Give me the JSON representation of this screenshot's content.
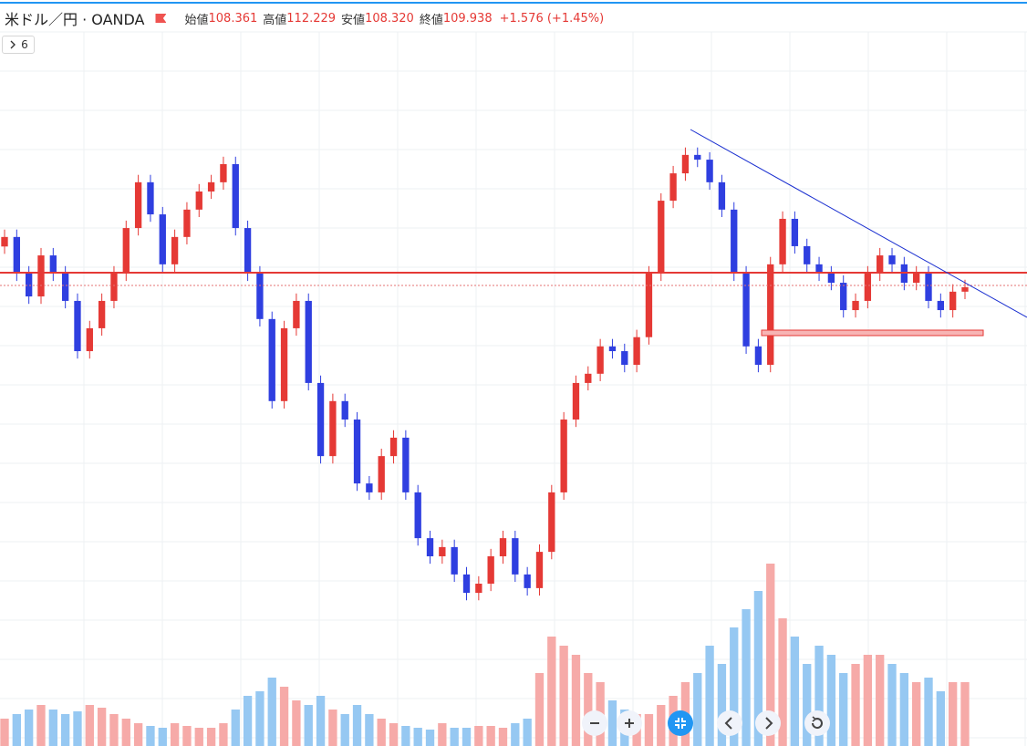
{
  "header": {
    "symbol": "米ドル／円 · OANDA",
    "ohlc": [
      {
        "label": "始値",
        "value": "108.361"
      },
      {
        "label": "高値",
        "value": "112.229"
      },
      {
        "label": "安値",
        "value": "108.320"
      },
      {
        "label": "終値",
        "value": "109.938"
      }
    ],
    "change": "+1.576 (+1.45%)"
  },
  "indicator_toggle": "6",
  "chart_data": {
    "type": "candlestick",
    "ylim": [
      94.5,
      119.59
    ],
    "y2lim": [
      0,
      818
    ],
    "up_color": "#e53935",
    "down_color": "#2f3fe0",
    "volume_up_color": "#f6aaa8",
    "volume_down_color": "#96c8f2",
    "grid": true,
    "open": [
      111.3,
      111.62,
      110.39,
      109.62,
      111.0,
      110.39,
      109.47,
      107.78,
      108.55,
      109.47,
      110.39,
      111.92,
      113.46,
      112.38,
      110.7,
      111.62,
      112.54,
      113.15,
      113.46,
      114.07,
      111.92,
      110.39,
      108.86,
      106.1,
      108.55,
      109.47,
      106.71,
      104.25,
      106.1,
      105.48,
      103.33,
      103.03,
      104.25,
      104.87,
      103.03,
      101.49,
      100.88,
      101.19,
      100.27,
      99.65,
      99.96,
      100.88,
      101.49,
      100.27,
      99.81,
      101.03,
      103.03,
      105.48,
      106.71,
      107.02,
      107.94,
      107.78,
      107.32,
      108.25,
      110.39,
      112.84,
      113.76,
      114.38,
      114.22,
      113.46,
      112.54,
      110.39,
      107.94,
      107.32,
      110.7,
      112.23,
      111.31,
      110.7,
      110.39,
      110.08,
      109.16,
      109.47,
      110.39,
      111.0,
      110.7,
      110.08,
      110.39,
      109.47,
      109.16,
      109.78
    ],
    "high": [
      111.87,
      111.87,
      110.64,
      111.25,
      111.25,
      110.64,
      109.72,
      108.8,
      109.72,
      110.64,
      112.17,
      113.71,
      113.71,
      112.63,
      111.87,
      112.79,
      113.4,
      113.71,
      114.32,
      114.32,
      112.17,
      110.64,
      109.11,
      108.8,
      109.72,
      109.72,
      106.96,
      106.35,
      106.35,
      105.73,
      103.58,
      104.5,
      105.12,
      105.12,
      103.28,
      101.74,
      101.44,
      101.44,
      100.52,
      100.21,
      101.13,
      101.74,
      101.74,
      100.52,
      101.28,
      103.28,
      105.73,
      106.96,
      107.27,
      108.19,
      108.19,
      108.03,
      108.5,
      110.64,
      113.09,
      114.01,
      114.63,
      114.63,
      114.47,
      113.71,
      112.79,
      110.64,
      108.19,
      110.95,
      112.48,
      112.48,
      111.56,
      110.95,
      110.64,
      110.33,
      109.72,
      110.64,
      111.25,
      111.25,
      110.95,
      110.64,
      110.64,
      109.72,
      110.03,
      110.18
    ],
    "low": [
      111.05,
      110.14,
      109.37,
      109.37,
      110.14,
      109.22,
      107.53,
      107.53,
      108.3,
      109.22,
      110.14,
      111.67,
      112.13,
      110.45,
      110.45,
      111.37,
      112.29,
      112.9,
      113.21,
      111.67,
      110.14,
      108.61,
      105.85,
      105.85,
      108.3,
      106.46,
      104.0,
      104.0,
      105.23,
      103.08,
      102.78,
      102.78,
      104.0,
      102.78,
      101.24,
      100.63,
      100.63,
      100.02,
      99.4,
      99.4,
      99.71,
      100.63,
      100.02,
      99.56,
      99.56,
      100.78,
      102.78,
      105.23,
      106.46,
      106.77,
      107.53,
      107.07,
      107.07,
      108.0,
      110.14,
      112.59,
      113.51,
      113.97,
      113.21,
      112.29,
      110.14,
      107.69,
      107.07,
      107.07,
      110.45,
      111.06,
      110.45,
      110.14,
      109.83,
      108.91,
      108.91,
      109.22,
      110.14,
      110.45,
      109.83,
      109.83,
      109.22,
      108.91,
      108.91,
      109.53
    ],
    "close": [
      111.62,
      110.39,
      109.62,
      111.0,
      110.39,
      109.47,
      107.78,
      108.55,
      109.47,
      110.39,
      111.92,
      113.46,
      112.38,
      110.7,
      111.62,
      112.54,
      113.15,
      113.46,
      114.07,
      111.92,
      110.39,
      108.86,
      106.1,
      108.55,
      109.47,
      106.71,
      104.25,
      106.1,
      105.48,
      103.33,
      103.03,
      104.25,
      104.87,
      103.03,
      101.49,
      100.88,
      101.19,
      100.27,
      99.65,
      99.96,
      100.88,
      101.49,
      100.27,
      99.81,
      101.03,
      103.03,
      105.48,
      106.71,
      107.02,
      107.94,
      107.78,
      107.32,
      108.25,
      110.39,
      112.84,
      113.76,
      114.38,
      114.22,
      113.46,
      112.54,
      110.39,
      107.94,
      107.32,
      110.7,
      112.23,
      111.31,
      110.7,
      110.39,
      110.08,
      109.16,
      109.47,
      110.39,
      111.0,
      110.7,
      110.08,
      110.39,
      109.47,
      109.16,
      109.78,
      109.93
    ],
    "volume": [
      30,
      35,
      40,
      45,
      40,
      35,
      38,
      45,
      42,
      35,
      30,
      25,
      22,
      20,
      25,
      22,
      20,
      20,
      25,
      40,
      55,
      60,
      75,
      65,
      50,
      45,
      55,
      40,
      35,
      45,
      35,
      30,
      25,
      22,
      20,
      18,
      25,
      20,
      20,
      22,
      22,
      20,
      25,
      30,
      80,
      120,
      110,
      100,
      80,
      70,
      50,
      40,
      35,
      35,
      45,
      55,
      70,
      80,
      110,
      90,
      130,
      150,
      170,
      200,
      140,
      120,
      90,
      110,
      100,
      80,
      90,
      100,
      100,
      90,
      80,
      70,
      75,
      60,
      70,
      70
    ]
  }
}
